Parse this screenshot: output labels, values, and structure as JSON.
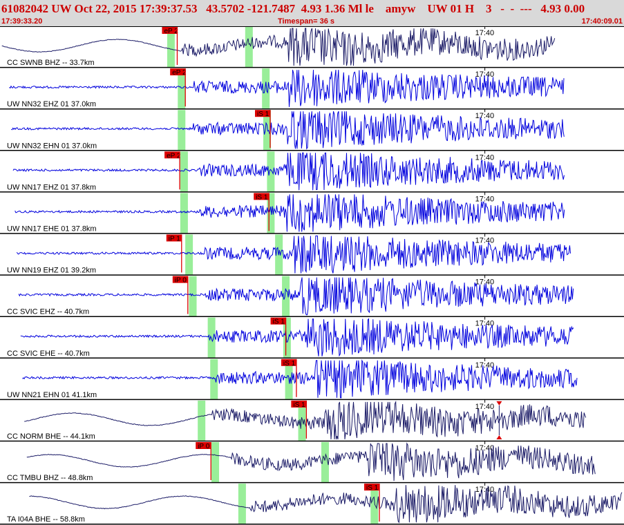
{
  "header": {
    "title": "61082042 UW Oct 22, 2015 17:39:37.53   43.5702 -121.7487  4.93 1.36 Ml le    amyw    UW 01 H    3   -  -  ---   4.93 0.00",
    "start_time": "17:39:33.20",
    "timespan": "Timespan=  36 s",
    "end_time": "17:40:09.01"
  },
  "colors": {
    "header_bg": "#d9d9d9",
    "header_text": "#cc0000",
    "trace_blue": "#0000dd",
    "trace_navy": "#1a1a66",
    "pick_red": "#dd0000",
    "window_green": "#99ee99",
    "separator": "#000000"
  },
  "icons": [
    "pick-flag-icon",
    "amplitude-marker-icon"
  ],
  "time_tick_label": "17:40",
  "traces": [
    {
      "label": "CC SWNB BHZ -- 33.7km",
      "color": "navy",
      "pick": {
        "label": "eP 2",
        "t": 0.284
      },
      "green": [
        0.274,
        0.399
      ],
      "p_onset": 0.29,
      "s_onset": 0.46,
      "end": 0.89,
      "style": "longperiod"
    },
    {
      "label": "UW NN32 EHZ 01 37.0km",
      "color": "blue",
      "pick": {
        "label": "eP 2",
        "t": 0.297
      },
      "green": [
        0.291,
        0.426
      ],
      "p_onset": 0.31,
      "s_onset": 0.46,
      "end": 0.905,
      "style": "noise"
    },
    {
      "label": "UW NN32 EHN 01 37.0km",
      "color": "blue",
      "pick": {
        "label": "iS 1",
        "t": 0.433
      },
      "green": [
        0.291,
        0.428
      ],
      "p_onset": 0.31,
      "s_onset": 0.46,
      "end": 0.905,
      "style": "noise"
    },
    {
      "label": "UW NN17 EHZ 01 37.8km",
      "color": "blue",
      "pick": {
        "label": "eP 2",
        "t": 0.288
      },
      "green": [
        0.295,
        0.434
      ],
      "p_onset": 0.32,
      "s_onset": 0.46,
      "end": 0.905,
      "style": "noise"
    },
    {
      "label": "UW NN17 EHE 01 37.8km",
      "color": "blue",
      "pick": {
        "label": "iS 1",
        "t": 0.431
      },
      "green": [
        0.295,
        0.434
      ],
      "p_onset": 0.32,
      "s_onset": 0.46,
      "end": 0.905,
      "style": "noise"
    },
    {
      "label": "UW NN19 EHZ 01 39.2km",
      "color": "blue",
      "pick": {
        "label": "iP 1",
        "t": 0.291
      },
      "green": [
        0.303,
        0.447
      ],
      "p_onset": 0.325,
      "s_onset": 0.47,
      "end": 0.915,
      "style": "noise"
    },
    {
      "label": "CC SVIC EHZ -- 40.7km",
      "color": "blue",
      "pick": {
        "label": "iP 0",
        "t": 0.301
      },
      "green": [
        0.309,
        0.458
      ],
      "p_onset": 0.33,
      "s_onset": 0.48,
      "end": 0.92,
      "style": "noise"
    },
    {
      "label": "CC SVIC EHE -- 40.7km",
      "color": "blue",
      "pick": {
        "label": "iS 1",
        "t": 0.458
      },
      "green": [
        0.339,
        0.46
      ],
      "p_onset": 0.335,
      "s_onset": 0.49,
      "end": 0.92,
      "style": "noise"
    },
    {
      "label": "UW NN21 EHN 01 41.1km",
      "color": "blue",
      "pick": {
        "label": "iS 1",
        "t": 0.475
      },
      "green": [
        0.343,
        0.463
      ],
      "p_onset": 0.345,
      "s_onset": 0.505,
      "end": 0.925,
      "style": "noise"
    },
    {
      "label": "CC NORM BHE -- 44.1km",
      "color": "navy",
      "pick": {
        "label": "iS 1",
        "t": 0.491
      },
      "green": [
        0.323,
        0.484
      ],
      "p_onset": 0.34,
      "s_onset": 0.52,
      "end": 0.94,
      "style": "longperiod",
      "marker": 0.8
    },
    {
      "label": "CC TMBU BHZ -- 48.8km",
      "color": "navy",
      "pick": {
        "label": "iP 0",
        "t": 0.338
      },
      "green": [
        0.345,
        0.521
      ],
      "p_onset": 0.37,
      "s_onset": 0.59,
      "end": 0.955,
      "style": "longperiod"
    },
    {
      "label": "TA I04A BHE -- 58.8km",
      "color": "navy",
      "pick": {
        "label": "iS 1",
        "t": 0.608
      },
      "green": [
        0.388,
        0.6
      ],
      "p_onset": 0.4,
      "s_onset": 0.635,
      "end": 1.0,
      "style": "longperiod"
    }
  ]
}
